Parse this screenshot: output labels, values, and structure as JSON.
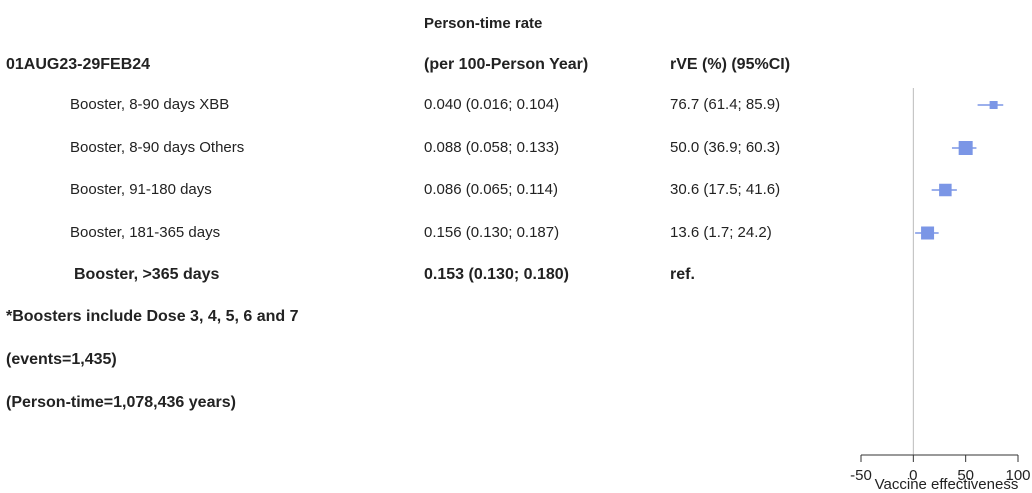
{
  "header": {
    "period": "01AUG23-29FEB24",
    "rate_label_line1": "Person-time rate",
    "rate_label_line2": "(per 100-Person Year)",
    "rve_label": "rVE (%)  (95%CI)"
  },
  "rows": [
    {
      "label": "Booster, 8-90 days XBB",
      "rate": "0.040 (0.016; 0.104)",
      "rve": "76.7 (61.4; 85.9)"
    },
    {
      "label": "Booster, 8-90 days Others",
      "rate": "0.088 (0.058; 0.133)",
      "rve": "50.0 (36.9; 60.3)"
    },
    {
      "label": "Booster, 91-180 days",
      "rate": "0.086 (0.065; 0.114)",
      "rve": "30.6 (17.5; 41.6)"
    },
    {
      "label": "Booster,  181-365 days",
      "rate": "0.156 (0.130; 0.187)",
      "rve": "13.6 (1.7; 24.2)"
    },
    {
      "label": "Booster,  >365 days",
      "rate": "0.153 (0.130; 0.180)",
      "rve": "ref."
    }
  ],
  "notes": [
    "*Boosters include Dose 3, 4, 5, 6 and 7",
    "(events=1,435)",
    "(Person-time=1,078,436 years)"
  ],
  "colors": {
    "marker": "#7b96e6",
    "ci_line": "#7b96e6",
    "ref_line": "#bbbbbb",
    "axis": "#333333"
  },
  "chart_data": {
    "type": "scatter",
    "title": "",
    "xlabel": "Vaccine effectiveness",
    "ylabel": "",
    "xlim": [
      -50,
      100
    ],
    "xticks": [
      -50,
      0,
      50,
      100
    ],
    "reference_line": 0,
    "categories": [
      "Booster, 8-90 days XBB",
      "Booster, 8-90 days Others",
      "Booster, 91-180 days",
      "Booster,  181-365 days"
    ],
    "series": [
      {
        "values": [
          76.7,
          50.0,
          30.6,
          13.6
        ],
        "lower": [
          61.4,
          36.9,
          17.5,
          1.7
        ],
        "upper": [
          85.9,
          60.3,
          41.6,
          24.2
        ],
        "marker_weight": [
          0.4,
          1.0,
          0.85,
          0.9
        ]
      }
    ]
  }
}
